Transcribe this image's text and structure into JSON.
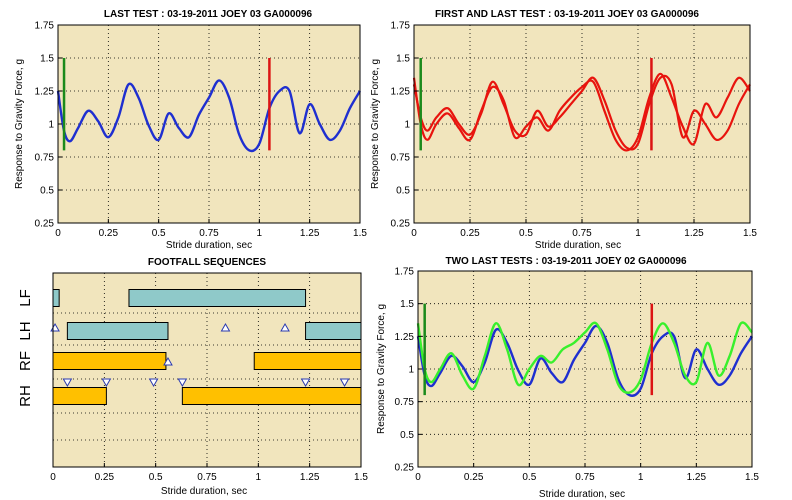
{
  "colors": {
    "panel_bg": "#f1e5bd",
    "blue": "#1f2fd0",
    "red": "#e8140e",
    "green": "#38f02c",
    "marker_green": "#1b8a1b",
    "marker_red": "#dc1414",
    "teal_bar": "#8fc9c9",
    "orange_bar": "#ffc000"
  },
  "chart_data": [
    {
      "id": "p1",
      "type": "line",
      "title": "LAST TEST : 03-19-2011 JOEY 03 GA000096",
      "xlabel": "Stride duration, sec",
      "ylabel": "Response to Gravity Force, g",
      "xlim": [
        0,
        1.5
      ],
      "ylim": [
        0.25,
        1.75
      ],
      "xticks": [
        "0",
        "0.25",
        "0.5",
        "0.75",
        "1",
        "1.25",
        "1.5"
      ],
      "yticks": [
        "0.25",
        "0.5",
        "0.75",
        "1",
        "1.25",
        "1.5",
        "1.75"
      ],
      "grid": true,
      "markers": [
        {
          "x": 0.03,
          "y_range": [
            0.8,
            1.5
          ],
          "color": "marker_green"
        },
        {
          "x": 1.05,
          "y_range": [
            0.8,
            1.5
          ],
          "color": "marker_red"
        }
      ],
      "series": [
        {
          "color": "blue",
          "width": 2.4,
          "x": [
            0,
            0.03,
            0.06,
            0.1,
            0.15,
            0.2,
            0.25,
            0.3,
            0.35,
            0.4,
            0.45,
            0.5,
            0.55,
            0.6,
            0.65,
            0.7,
            0.75,
            0.8,
            0.85,
            0.9,
            0.95,
            1.0,
            1.05,
            1.1,
            1.15,
            1.2,
            1.25,
            1.3,
            1.35,
            1.4,
            1.45,
            1.5
          ],
          "y": [
            1.25,
            0.95,
            0.87,
            0.97,
            1.1,
            1.02,
            0.9,
            1.05,
            1.3,
            1.2,
            0.99,
            0.88,
            1.08,
            0.97,
            0.9,
            1.07,
            1.2,
            1.33,
            1.2,
            0.92,
            0.8,
            0.85,
            1.12,
            1.25,
            1.25,
            0.93,
            1.15,
            1.0,
            0.88,
            0.95,
            1.12,
            1.25
          ]
        }
      ]
    },
    {
      "id": "p2",
      "type": "line",
      "title": "FIRST AND LAST TEST : 03-19-2011 JOEY 03 GA000096",
      "xlabel": "Stride duration, sec",
      "ylabel": "Response to Gravity Force, g",
      "xlim": [
        0,
        1.5
      ],
      "ylim": [
        0.25,
        1.75
      ],
      "xticks": [
        "0",
        "0.25",
        "0.5",
        "0.75",
        "1",
        "1.25",
        "1.5"
      ],
      "yticks": [
        "0.25",
        "0.5",
        "0.75",
        "1",
        "1.25",
        "1.5",
        "1.75"
      ],
      "grid": true,
      "markers": [
        {
          "x": 0.03,
          "y_range": [
            0.8,
            1.5
          ],
          "color": "marker_green"
        },
        {
          "x": 1.06,
          "y_range": [
            0.8,
            1.5
          ],
          "color": "marker_red"
        }
      ],
      "series": [
        {
          "color": "red",
          "width": 2.2,
          "x": [
            0,
            0.03,
            0.06,
            0.1,
            0.15,
            0.2,
            0.25,
            0.3,
            0.35,
            0.4,
            0.45,
            0.5,
            0.55,
            0.6,
            0.65,
            0.7,
            0.75,
            0.8,
            0.85,
            0.9,
            0.95,
            1.0,
            1.05,
            1.1,
            1.15,
            1.2,
            1.25,
            1.3,
            1.35,
            1.4,
            1.45,
            1.5
          ],
          "y": [
            1.3,
            1.05,
            0.95,
            1.05,
            1.12,
            1.0,
            0.92,
            1.08,
            1.32,
            1.15,
            0.95,
            0.92,
            1.1,
            0.98,
            1.05,
            1.15,
            1.25,
            1.35,
            1.18,
            0.95,
            0.82,
            0.85,
            1.15,
            1.35,
            1.3,
            0.9,
            1.1,
            1.0,
            0.88,
            0.95,
            1.15,
            1.3
          ]
        },
        {
          "color": "red",
          "width": 2.2,
          "x": [
            0,
            0.03,
            0.06,
            0.1,
            0.15,
            0.2,
            0.25,
            0.3,
            0.35,
            0.4,
            0.45,
            0.5,
            0.55,
            0.6,
            0.65,
            0.7,
            0.75,
            0.8,
            0.85,
            0.9,
            0.95,
            1.0,
            1.05,
            1.1,
            1.15,
            1.2,
            1.25,
            1.3,
            1.35,
            1.4,
            1.45,
            1.5
          ],
          "y": [
            1.35,
            1.0,
            0.88,
            1.0,
            1.08,
            0.97,
            0.88,
            1.1,
            1.28,
            1.18,
            0.9,
            0.98,
            1.05,
            0.95,
            1.1,
            1.2,
            1.28,
            1.32,
            1.1,
            0.88,
            0.8,
            0.9,
            1.2,
            1.38,
            1.2,
            0.98,
            0.85,
            1.15,
            1.05,
            1.2,
            1.35,
            1.25
          ]
        }
      ]
    },
    {
      "id": "p3",
      "type": "bar",
      "title": "FOOTFALL SEQUENCES",
      "xlabel": "Stride duration, sec",
      "xlim": [
        0,
        1.5
      ],
      "xticks": [
        "0",
        "0.25",
        "0.5",
        "0.75",
        "1",
        "1.25",
        "1.5"
      ],
      "rows": [
        "LF",
        "LH",
        "RF",
        "RH"
      ],
      "bars": [
        {
          "row": "LF",
          "start": 0.0,
          "end": 0.03,
          "color": "teal_bar"
        },
        {
          "row": "LF",
          "start": 0.37,
          "end": 1.23,
          "color": "teal_bar"
        },
        {
          "row": "LH",
          "start": 0.07,
          "end": 0.56,
          "color": "teal_bar"
        },
        {
          "row": "LH",
          "start": 1.23,
          "end": 1.5,
          "color": "teal_bar"
        },
        {
          "row": "RF",
          "start": 0.0,
          "end": 0.55,
          "color": "orange_bar"
        },
        {
          "row": "RF",
          "start": 0.98,
          "end": 1.5,
          "color": "orange_bar"
        },
        {
          "row": "RH",
          "start": 0.0,
          "end": 0.26,
          "color": "orange_bar"
        },
        {
          "row": "RH",
          "start": 0.63,
          "end": 1.5,
          "color": "orange_bar"
        }
      ],
      "up_triangles": [
        {
          "row": "LH",
          "x": 0.01
        },
        {
          "row": "LH",
          "x": 0.84
        },
        {
          "row": "LH",
          "x": 1.13
        },
        {
          "row": "RF",
          "x": 0.56
        }
      ],
      "down_triangles": [
        {
          "row": "RF",
          "x": 0.07
        },
        {
          "row": "RF",
          "x": 0.26
        },
        {
          "row": "RF",
          "x": 0.49
        },
        {
          "row": "RF",
          "x": 0.63
        },
        {
          "row": "RF",
          "x": 1.23
        },
        {
          "row": "RF",
          "x": 1.42
        }
      ]
    },
    {
      "id": "p4",
      "type": "line",
      "title": "TWO LAST TESTS : 03-19-2011 JOEY 02 GA000096",
      "xlabel": "Stride duration, sec",
      "ylabel": "Response to Gravity Force, g",
      "xlim": [
        0,
        1.5
      ],
      "ylim": [
        0.25,
        1.75
      ],
      "xticks": [
        "0",
        "0.25",
        "0.5",
        "0.75",
        "1",
        "1.25",
        "1.5"
      ],
      "yticks": [
        "0.25",
        "0.5",
        "0.75",
        "1",
        "1.25",
        "1.5",
        "1.75"
      ],
      "grid": true,
      "markers": [
        {
          "x": 0.03,
          "y_range": [
            0.8,
            1.5
          ],
          "color": "marker_green"
        },
        {
          "x": 1.05,
          "y_range": [
            0.8,
            1.5
          ],
          "color": "marker_red"
        }
      ],
      "series": [
        {
          "color": "blue",
          "width": 2.4,
          "x": [
            0,
            0.03,
            0.06,
            0.1,
            0.15,
            0.2,
            0.25,
            0.3,
            0.35,
            0.4,
            0.45,
            0.5,
            0.55,
            0.6,
            0.65,
            0.7,
            0.75,
            0.8,
            0.85,
            0.9,
            0.95,
            1.0,
            1.05,
            1.1,
            1.15,
            1.2,
            1.25,
            1.3,
            1.35,
            1.4,
            1.45,
            1.5
          ],
          "y": [
            1.25,
            0.95,
            0.87,
            0.97,
            1.1,
            1.02,
            0.9,
            1.05,
            1.3,
            1.2,
            0.99,
            0.88,
            1.08,
            0.97,
            0.9,
            1.07,
            1.2,
            1.33,
            1.2,
            0.92,
            0.8,
            0.85,
            1.12,
            1.25,
            1.25,
            0.93,
            1.15,
            1.0,
            0.88,
            0.95,
            1.12,
            1.25
          ]
        },
        {
          "color": "green",
          "width": 2.4,
          "x": [
            0,
            0.03,
            0.06,
            0.1,
            0.15,
            0.2,
            0.25,
            0.3,
            0.35,
            0.4,
            0.45,
            0.5,
            0.55,
            0.6,
            0.65,
            0.7,
            0.75,
            0.8,
            0.85,
            0.9,
            0.95,
            1.0,
            1.05,
            1.1,
            1.15,
            1.2,
            1.25,
            1.3,
            1.35,
            1.4,
            1.45,
            1.5
          ],
          "y": [
            1.35,
            1.0,
            0.9,
            1.0,
            1.12,
            0.95,
            0.85,
            1.1,
            1.35,
            1.15,
            0.88,
            1.0,
            1.1,
            1.05,
            1.15,
            1.2,
            1.28,
            1.35,
            1.15,
            0.88,
            0.82,
            0.92,
            1.2,
            1.35,
            1.2,
            0.95,
            0.9,
            1.2,
            0.95,
            1.1,
            1.35,
            1.28
          ]
        }
      ]
    }
  ]
}
